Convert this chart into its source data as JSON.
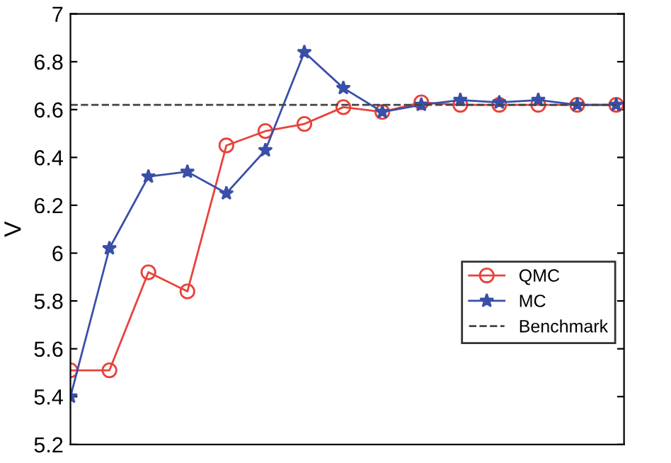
{
  "chart_data": {
    "type": "line",
    "ylabel": "V",
    "categories": [
      null,
      null,
      null,
      null,
      null,
      null,
      null,
      null,
      null,
      null,
      null,
      null,
      null,
      null,
      null
    ],
    "series": [
      {
        "name": "QMC",
        "color": "#e8423a",
        "marker": "circle",
        "values": [
          5.51,
          5.51,
          5.92,
          5.84,
          6.45,
          6.51,
          6.54,
          6.61,
          6.59,
          6.63,
          6.62,
          6.62,
          6.62,
          6.62,
          6.62
        ]
      },
      {
        "name": "MC",
        "color": "#3a4fa8",
        "marker": "star",
        "values": [
          5.4,
          6.02,
          6.32,
          6.34,
          6.25,
          6.43,
          6.84,
          6.69,
          6.59,
          6.62,
          6.64,
          6.63,
          6.64,
          6.62,
          6.62
        ]
      },
      {
        "name": "Benchmark",
        "color": "#444444",
        "marker": "none",
        "line_style": "dashed",
        "values": [
          6.62,
          6.62,
          6.62,
          6.62,
          6.62,
          6.62,
          6.62,
          6.62,
          6.62,
          6.62,
          6.62,
          6.62,
          6.62,
          6.62,
          6.62
        ]
      }
    ],
    "ylim": [
      5.2,
      7
    ],
    "yticks": [
      5.2,
      5.4,
      5.6,
      5.8,
      6,
      6.2,
      6.4,
      6.6,
      6.8,
      7
    ],
    "grid": false,
    "legend": "right"
  }
}
